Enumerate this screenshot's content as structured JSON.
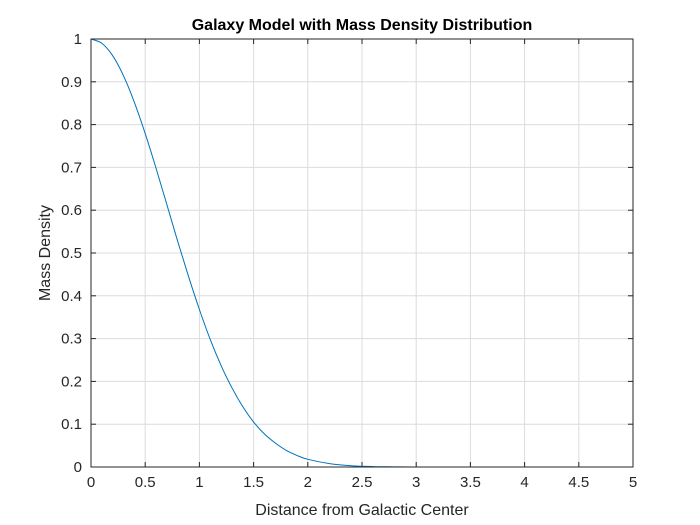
{
  "chart_data": {
    "type": "line",
    "title": "Galaxy Model with Mass Density Distribution",
    "xlabel": "Distance from Galactic Center",
    "ylabel": "Mass Density",
    "xlim": [
      0,
      5
    ],
    "ylim": [
      0,
      1
    ],
    "xticks": [
      "0",
      "0.5",
      "1",
      "1.5",
      "2",
      "2.5",
      "3",
      "3.5",
      "4",
      "4.5",
      "5"
    ],
    "yticks": [
      "0",
      "0.1",
      "0.2",
      "0.3",
      "0.4",
      "0.5",
      "0.6",
      "0.7",
      "0.8",
      "0.9",
      "1"
    ],
    "grid": true,
    "line_color": "#0072BD",
    "series": [
      {
        "x": [
          0,
          0.1,
          0.2,
          0.3,
          0.4,
          0.5,
          0.6,
          0.7,
          0.8,
          0.9,
          1.0,
          1.1,
          1.2,
          1.3,
          1.4,
          1.5,
          1.6,
          1.7,
          1.8,
          1.9,
          2.0,
          2.2,
          2.4,
          2.6,
          2.8,
          3.0,
          3.5,
          4.0,
          4.5,
          5.0
        ],
        "y": [
          1.0,
          0.99,
          0.961,
          0.914,
          0.852,
          0.779,
          0.698,
          0.613,
          0.527,
          0.445,
          0.368,
          0.298,
          0.237,
          0.185,
          0.141,
          0.105,
          0.077,
          0.056,
          0.039,
          0.027,
          0.018,
          0.008,
          0.003,
          0.001,
          0.0004,
          0.0001,
          0.0,
          0.0,
          0.0,
          0.0
        ]
      }
    ]
  }
}
